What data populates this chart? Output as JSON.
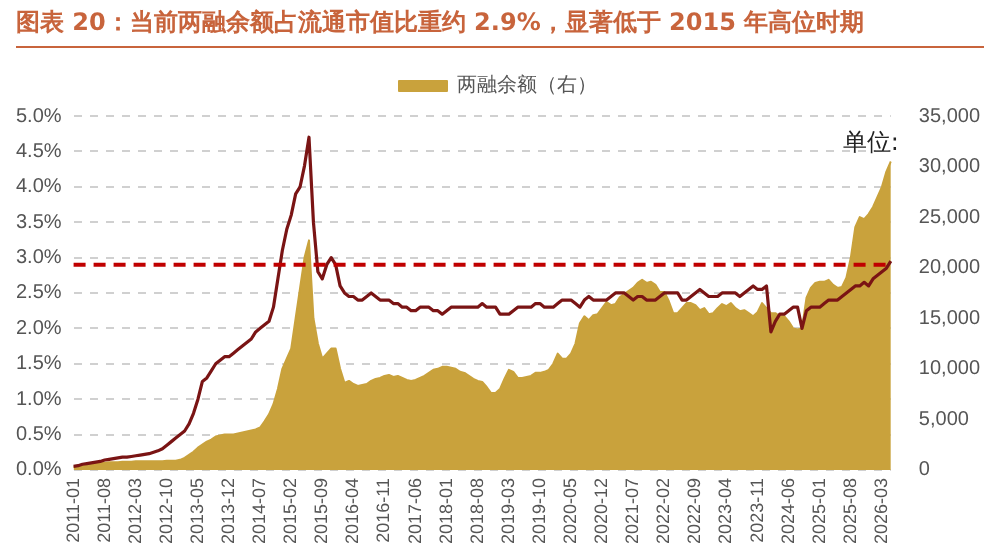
{
  "chart_data": {
    "type": "line",
    "title": "图表 20：当前两融余额占流通市值比重约 2.9%，显著低于 2015 年高位时期",
    "categories": [
      "2011-01",
      null,
      null,
      null,
      null,
      null,
      null,
      "2011-08",
      null,
      null,
      null,
      null,
      null,
      null,
      "2012-03",
      null,
      null,
      null,
      null,
      null,
      null,
      "2012-10",
      null,
      null,
      null,
      null,
      null,
      null,
      "2013-05",
      null,
      null,
      null,
      null,
      null,
      null,
      "2013-12",
      null,
      null,
      null,
      null,
      null,
      null,
      "2014-07",
      null,
      null,
      null,
      null,
      null,
      null,
      "2015-02",
      null,
      null,
      null,
      null,
      null,
      null,
      "2015-09",
      null,
      null,
      null,
      null,
      null,
      null,
      "2016-04",
      null,
      null,
      null,
      null,
      null,
      null,
      "2016-11",
      null,
      null,
      null,
      null,
      null,
      null,
      "2017-06",
      null,
      null,
      null,
      null,
      null,
      null,
      "2018-01",
      null,
      null,
      null,
      null,
      null,
      null,
      "2018-08",
      null,
      null,
      null,
      null,
      null,
      null,
      "2019-03",
      null,
      null,
      null,
      null,
      null,
      null,
      "2019-10",
      null,
      null,
      null,
      null,
      null,
      null,
      "2020-05",
      null,
      null,
      null,
      null,
      null,
      null,
      "2020-12",
      null,
      null,
      null,
      null,
      null,
      null,
      "2021-07",
      null,
      null,
      null,
      null,
      null,
      null,
      "2022-02",
      null,
      null,
      null,
      null,
      null,
      null,
      "2022-09",
      null,
      null,
      null,
      null,
      null,
      null,
      "2023-04",
      null,
      null,
      null,
      null,
      null,
      null,
      "2023-11",
      null,
      null,
      null,
      null,
      null,
      null,
      "2024-06",
      null,
      null,
      null,
      null,
      null,
      null,
      "2025-01",
      null,
      null,
      null,
      null,
      null,
      null,
      "2025-08",
      null,
      null,
      null,
      null,
      null,
      null,
      "2026-03",
      null,
      null
    ],
    "series": [
      {
        "type": "area",
        "name": "两融余额（右）",
        "color": "#c9a23c",
        "axis": "y2",
        "values": [
          300,
          350,
          400,
          500,
          550,
          600,
          650,
          700,
          750,
          750,
          750,
          800,
          800,
          800,
          850,
          850,
          850,
          850,
          850,
          850,
          850,
          900,
          900,
          900,
          1000,
          1200,
          1500,
          1800,
          2200,
          2500,
          2800,
          3000,
          3300,
          3400,
          3500,
          3500,
          3500,
          3600,
          3700,
          3800,
          3900,
          4000,
          4200,
          4800,
          5500,
          6500,
          8000,
          10000,
          11000,
          12000,
          15000,
          18000,
          21000,
          22700,
          15000,
          12500,
          11000,
          11500,
          12000,
          12000,
          10000,
          8600,
          8800,
          8500,
          8300,
          8400,
          8500,
          8800,
          9000,
          9100,
          9300,
          9400,
          9200,
          9300,
          9100,
          8900,
          8800,
          8900,
          9100,
          9300,
          9600,
          9900,
          10000,
          10200,
          10200,
          10100,
          10000,
          9700,
          9600,
          9300,
          9000,
          8800,
          8700,
          8200,
          7600,
          7600,
          8000,
          9000,
          9900,
          9700,
          9100,
          9100,
          9200,
          9300,
          9600,
          9600,
          9700,
          9900,
          10500,
          11500,
          11000,
          11000,
          11500,
          12500,
          14500,
          15200,
          14800,
          15300,
          15400,
          16000,
          16600,
          16300,
          16400,
          17100,
          17400,
          17700,
          18000,
          18500,
          18800,
          18500,
          18600,
          18300,
          17600,
          17600,
          16700,
          15500,
          15500,
          16000,
          16500,
          16500,
          16300,
          15800,
          16000,
          15400,
          15500,
          16000,
          16400,
          16200,
          16500,
          16000,
          15700,
          15800,
          15500,
          15200,
          15600,
          16500,
          16000,
          15500,
          15500,
          15200,
          15200,
          14700,
          14000,
          13900,
          14000,
          17000,
          18000,
          18500,
          18600,
          18600,
          18800,
          18300,
          18000,
          18100,
          19000,
          21000,
          24000,
          25000,
          24800,
          25300,
          26000,
          27000,
          28000,
          29500,
          30500
        ]
      },
      {
        "color": "#7a1414",
        "values": [
          0.05,
          0.06,
          0.08,
          0.09,
          0.1,
          0.11,
          0.12,
          0.14,
          0.15,
          0.16,
          0.17,
          0.18,
          0.18,
          0.19,
          0.2,
          0.21,
          0.22,
          0.23,
          0.25,
          0.27,
          0.3,
          0.35,
          0.4,
          0.45,
          0.5,
          0.55,
          0.65,
          0.8,
          1.0,
          1.25,
          1.3,
          1.4,
          1.5,
          1.55,
          1.6,
          1.6,
          1.65,
          1.7,
          1.75,
          1.8,
          1.85,
          1.95,
          2.0,
          2.05,
          2.1,
          2.3,
          2.7,
          3.1,
          3.4,
          3.6,
          3.9,
          4.0,
          4.3,
          4.7,
          3.5,
          2.8,
          2.7,
          2.9,
          3.0,
          2.9,
          2.6,
          2.5,
          2.45,
          2.45,
          2.4,
          2.4,
          2.45,
          2.5,
          2.45,
          2.4,
          2.4,
          2.4,
          2.35,
          2.35,
          2.3,
          2.3,
          2.25,
          2.25,
          2.3,
          2.3,
          2.3,
          2.25,
          2.25,
          2.2,
          2.25,
          2.3,
          2.3,
          2.3,
          2.3,
          2.3,
          2.3,
          2.3,
          2.35,
          2.3,
          2.3,
          2.3,
          2.2,
          2.2,
          2.2,
          2.25,
          2.3,
          2.3,
          2.3,
          2.3,
          2.35,
          2.35,
          2.3,
          2.3,
          2.3,
          2.35,
          2.4,
          2.4,
          2.4,
          2.35,
          2.3,
          2.4,
          2.45,
          2.4,
          2.4,
          2.4,
          2.4,
          2.45,
          2.5,
          2.5,
          2.5,
          2.45,
          2.4,
          2.45,
          2.45,
          2.4,
          2.4,
          2.4,
          2.45,
          2.5,
          2.5,
          2.5,
          2.5,
          2.4,
          2.4,
          2.45,
          2.5,
          2.55,
          2.5,
          2.45,
          2.45,
          2.45,
          2.5,
          2.5,
          2.5,
          2.5,
          2.45,
          2.5,
          2.55,
          2.6,
          2.55,
          2.55,
          2.6,
          1.95,
          2.1,
          2.2,
          2.2,
          2.25,
          2.3,
          2.3,
          2.0,
          2.25,
          2.3,
          2.3,
          2.3,
          2.35,
          2.4,
          2.4,
          2.4,
          2.45,
          2.5,
          2.55,
          2.6,
          2.6,
          2.65,
          2.6,
          2.7,
          2.75,
          2.8,
          2.85,
          2.95
        ]
      }
    ],
    "ylim": [
      0,
      5
    ],
    "yticks": [
      {
        "value": 0,
        "label": "0.0%"
      },
      {
        "value": 0.5,
        "label": "0.5%"
      },
      {
        "value": 1,
        "label": "1.0%"
      },
      {
        "value": 1.5,
        "label": "1.5%"
      },
      {
        "value": 2,
        "label": "2.0%"
      },
      {
        "value": 2.5,
        "label": "2.5%"
      },
      {
        "value": 3,
        "label": "3.0%"
      },
      {
        "value": 3.5,
        "label": "3.5%"
      },
      {
        "value": 4,
        "label": "4.0%"
      },
      {
        "value": 4.5,
        "label": "4.5%"
      },
      {
        "value": 5,
        "label": "5.0%"
      }
    ],
    "y2lim": [
      0,
      35000
    ],
    "y2ticks": [
      0,
      {
        "value": 5000,
        "label": "5,000"
      },
      {
        "value": 10000,
        "label": "10,000"
      },
      {
        "value": 15000,
        "label": "15,000"
      },
      {
        "value": 20000,
        "label": "20,000"
      },
      {
        "value": 25000,
        "label": "25,000"
      },
      {
        "value": 30000,
        "label": "30,000"
      },
      {
        "value": 35000,
        "label": "35,000"
      }
    ],
    "ref_lines": [
      {
        "axis": "y",
        "value": 2.9,
        "color": "#c00000",
        "line_style": "dashed"
      }
    ],
    "annotations": [
      "单位:"
    ],
    "grid": "y",
    "legend": "top"
  }
}
